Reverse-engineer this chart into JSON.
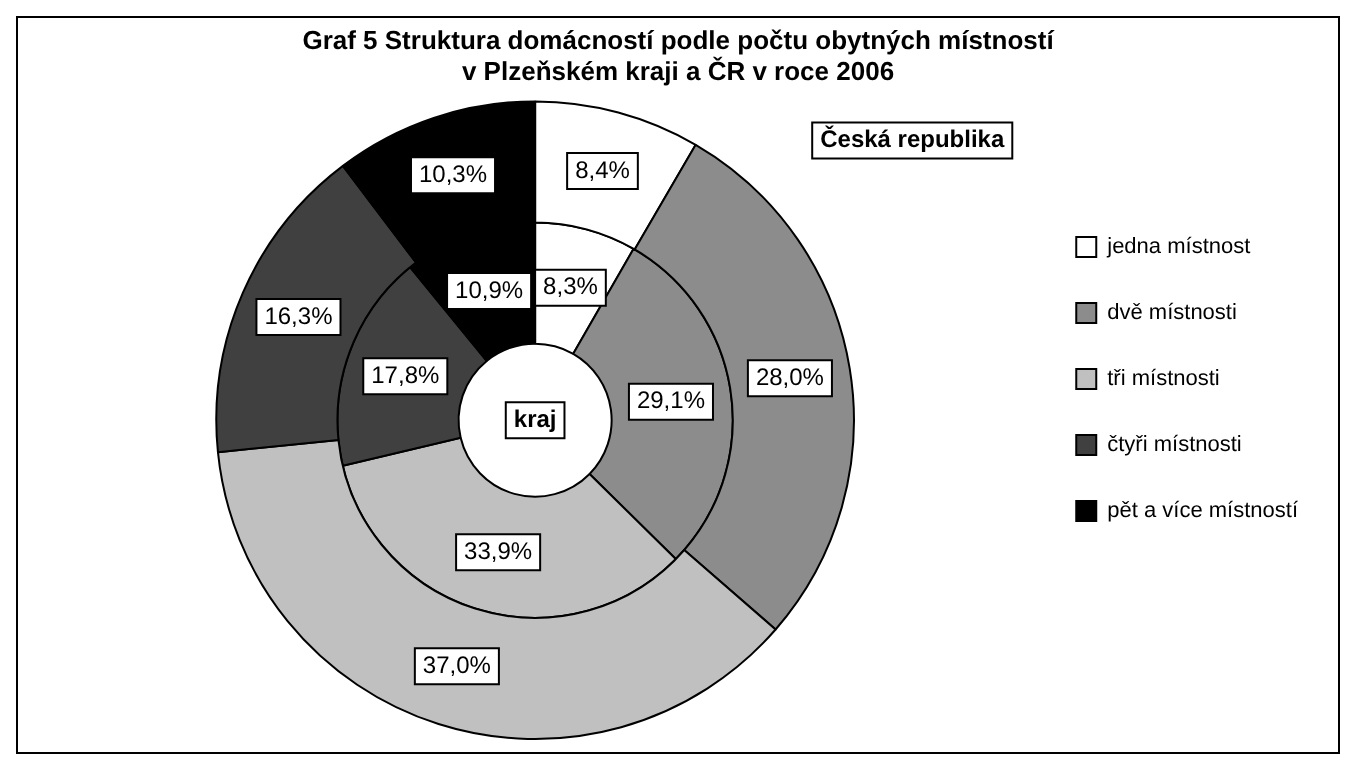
{
  "chart_data": {
    "type": "donut",
    "title": "Graf 5 Struktura domácností podle počtu obytných místností\nv Plzeňském kraji a ČR v roce 2006",
    "categories": [
      "jedna místnost",
      "dvě místnosti",
      "tři místnosti",
      "čtyři místnosti",
      "pět a více místností"
    ],
    "colors": [
      "#ffffff",
      "#8c8c8c",
      "#c0c0c0",
      "#404040",
      "#000000"
    ],
    "series": [
      {
        "name": "Česká republika",
        "values": [
          8.4,
          28.0,
          37.0,
          16.3,
          10.3
        ],
        "value_labels": [
          "8,4%",
          "28,0%",
          "37,0%",
          "16,3%",
          "10,3%"
        ]
      },
      {
        "name": "kraj",
        "values": [
          8.3,
          29.1,
          33.9,
          17.8,
          10.9
        ],
        "value_labels": [
          "8,3%",
          "29,1%",
          "33,9%",
          "17,8%",
          "10,9%"
        ]
      }
    ],
    "legend": "right"
  }
}
